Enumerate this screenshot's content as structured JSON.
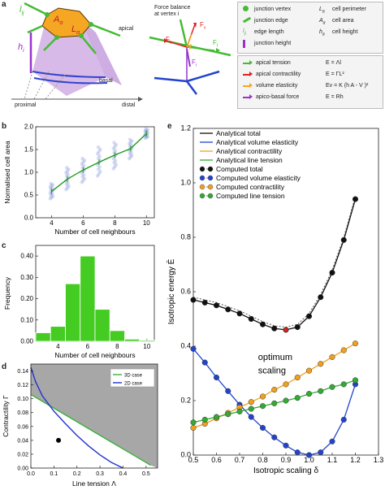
{
  "panel_a": {
    "letter": "a",
    "labels": {
      "l_ij": "l",
      "l_ij_sub": "ij",
      "A_alpha": "A",
      "A_alpha_sub": "α",
      "L_alpha": "L",
      "L_alpha_sub": "α",
      "h_i": "h",
      "h_i_sub": "i",
      "apical": "apical",
      "basal": "basal",
      "proximal": "proximal",
      "distal": "distal"
    },
    "force_title_1": "Force balance",
    "force_title_2": "at vertex i",
    "force_labels": [
      "F",
      "F",
      "F",
      "F"
    ],
    "force_label_subs": [
      "v",
      "c",
      "t",
      "r"
    ],
    "legend_top": [
      {
        "icon": "green-dot",
        "text": "junction vertex",
        "sym": "L",
        "sym_sub": "α",
        "desc": "cell perimeter"
      },
      {
        "icon": "green-line",
        "text": "junction edge",
        "sym": "A",
        "sym_sub": "α",
        "desc": "cell area"
      },
      {
        "icon": "text-lij",
        "text": "edge length",
        "sym": "h",
        "sym_sub": "α",
        "desc": "cell height"
      },
      {
        "icon": "purple-line",
        "text": "junction height",
        "sym": "",
        "sym_sub": "",
        "desc": ""
      }
    ],
    "legend_bottom": [
      {
        "icon": "green-arrow",
        "text": "apical tension",
        "eq": "E = Λl",
        "eq_sub1": "t",
        "eq_sub2": "ij"
      },
      {
        "icon": "red-arrow",
        "text": "apical contractility",
        "eq": "E = ΓL²",
        "eq_sub1": "c",
        "eq_sub2": ""
      },
      {
        "icon": "orange-arrow",
        "text": "volume elasticity",
        "eq": "Ev = K (h A  - V )²",
        "eq_sub1": "",
        "eq_sub2": ""
      },
      {
        "icon": "purple-arrow",
        "text": "apico-basal force",
        "eq": "E = Rh",
        "eq_sub1": "r",
        "eq_sub2": "i"
      }
    ]
  },
  "panel_b": {
    "letter": "b",
    "chart_data": {
      "type": "scatter",
      "xlabel": "Number of cell neighbours",
      "ylabel": "Normalised cell area",
      "xlim": [
        3,
        10.5
      ],
      "ylim": [
        0,
        2.0
      ],
      "xticks": [
        4,
        6,
        8,
        10
      ],
      "yticks": [
        0.0,
        0.5,
        1.0,
        1.5,
        2.0
      ],
      "mean_line": {
        "x": [
          4,
          5,
          6,
          7,
          8,
          9,
          10
        ],
        "y": [
          0.58,
          0.85,
          1.05,
          1.22,
          1.38,
          1.52,
          1.85
        ]
      },
      "scatter_spread": {
        "x": [
          4,
          5,
          6,
          7,
          8,
          9,
          10
        ],
        "low": [
          0.42,
          0.62,
          0.78,
          0.92,
          1.08,
          1.3,
          1.75
        ],
        "high": [
          0.75,
          1.1,
          1.3,
          1.55,
          1.65,
          1.72,
          1.95
        ]
      }
    }
  },
  "panel_c": {
    "letter": "c",
    "chart_data": {
      "type": "bar",
      "xlabel": "Number of cell neighbours",
      "ylabel": "Frequency",
      "categories": [
        3,
        4,
        5,
        6,
        7,
        8,
        9,
        10
      ],
      "values": [
        0.04,
        0.07,
        0.27,
        0.4,
        0.15,
        0.05,
        0.01,
        0.005
      ],
      "ylim": [
        0,
        0.45
      ],
      "xticks": [
        4,
        6,
        8,
        10
      ],
      "yticks": [
        0.0,
        0.1,
        0.2,
        0.3,
        0.4
      ],
      "ytick_labels": [
        "0.00",
        "0.10",
        "0.20",
        "0.30",
        "0.40"
      ],
      "bar_color": "#44cc22"
    }
  },
  "panel_d": {
    "letter": "d",
    "chart_data": {
      "type": "line",
      "xlabel": "Line tension Λ",
      "ylabel": "Contractility Γ",
      "xlim": [
        0,
        0.55
      ],
      "ylim": [
        0,
        0.15
      ],
      "xticks": [
        0.0,
        0.1,
        0.2,
        0.3,
        0.4,
        0.5
      ],
      "yticks": [
        0.0,
        0.02,
        0.04,
        0.06,
        0.08,
        0.1,
        0.12,
        0.14
      ],
      "series": [
        {
          "name": "3D case",
          "color": "#3ab03a",
          "x": [
            0.0,
            0.05,
            0.1,
            0.15,
            0.2,
            0.25,
            0.3,
            0.35,
            0.4,
            0.45,
            0.5,
            0.52
          ],
          "y": [
            0.106,
            0.0962,
            0.0864,
            0.0766,
            0.0668,
            0.057,
            0.0472,
            0.0374,
            0.0276,
            0.0178,
            0.008,
            0.0041
          ]
        },
        {
          "name": "2D case",
          "color": "#2233cc",
          "x": [
            0.0,
            0.02,
            0.05,
            0.1,
            0.15,
            0.2,
            0.25,
            0.3,
            0.35,
            0.4
          ],
          "y": [
            0.145,
            0.125,
            0.104,
            0.082,
            0.064,
            0.047,
            0.032,
            0.019,
            0.008,
            0.0
          ]
        }
      ],
      "point": {
        "x": 0.12,
        "y": 0.04
      },
      "shaded_region_color": "#a7a7a7"
    }
  },
  "panel_e": {
    "letter": "e",
    "annotation_1": "optimum",
    "annotation_2": "scaling",
    "chart_data": {
      "type": "line",
      "xlabel": "Isotropic scaling δ",
      "ylabel": "Isotropic energy Ē",
      "xlim": [
        0.5,
        1.3
      ],
      "ylim": [
        0.0,
        1.2
      ],
      "xticks": [
        0.5,
        0.6,
        0.7,
        0.8,
        0.9,
        1.0,
        1.1,
        1.2,
        1.3
      ],
      "xtick_labels": [
        "0.5",
        "0.6",
        "0.7",
        "0.8",
        "0.9",
        "1.0",
        "1.1",
        "1.2",
        "1.3"
      ],
      "yticks": [
        0.0,
        0.2,
        0.4,
        0.6,
        0.8,
        1.0,
        1.2
      ],
      "ytick_labels": [
        "0.0",
        "0.2",
        "0.4",
        "0.6",
        "0.8",
        "1.0",
        "1.2"
      ],
      "optimum": {
        "x": 0.9,
        "y": 0.46
      },
      "legend": [
        {
          "label": "Analytical total",
          "color": "#111111",
          "kind": "line"
        },
        {
          "label": "Analytical volume elasticity",
          "color": "#2244cc",
          "kind": "line"
        },
        {
          "label": "Analytical contractility",
          "color": "#f0a020",
          "kind": "line"
        },
        {
          "label": "Analytical line tension",
          "color": "#33aa33",
          "kind": "line"
        },
        {
          "label": "Computed total",
          "color": "#111111",
          "kind": "dot"
        },
        {
          "label": "Computed volume elasticity",
          "color": "#2244cc",
          "kind": "dot"
        },
        {
          "label": "Computed contractility",
          "color": "#f0a020",
          "kind": "dot"
        },
        {
          "label": "Computed line tension",
          "color": "#33aa33",
          "kind": "dot"
        }
      ],
      "series": [
        {
          "name": "Analytical total",
          "x": [
            0.5,
            0.55,
            0.6,
            0.65,
            0.7,
            0.75,
            0.8,
            0.85,
            0.9,
            0.95,
            1.0,
            1.05,
            1.1,
            1.15,
            1.2
          ],
          "y": [
            0.57,
            0.56,
            0.55,
            0.535,
            0.52,
            0.5,
            0.48,
            0.465,
            0.46,
            0.47,
            0.51,
            0.58,
            0.67,
            0.79,
            0.94
          ]
        },
        {
          "name": "Analytical volume elasticity",
          "x": [
            0.5,
            0.55,
            0.6,
            0.65,
            0.7,
            0.75,
            0.8,
            0.85,
            0.9,
            0.95,
            1.0,
            1.05,
            1.1,
            1.15,
            1.2
          ],
          "y": [
            0.39,
            0.34,
            0.285,
            0.235,
            0.185,
            0.14,
            0.1,
            0.065,
            0.035,
            0.01,
            0.0,
            0.01,
            0.05,
            0.13,
            0.26
          ]
        },
        {
          "name": "Analytical contractility",
          "x": [
            0.5,
            0.55,
            0.6,
            0.65,
            0.7,
            0.75,
            0.8,
            0.85,
            0.9,
            0.95,
            1.0,
            1.05,
            1.1,
            1.15,
            1.2
          ],
          "y": [
            0.1,
            0.115,
            0.135,
            0.155,
            0.175,
            0.195,
            0.215,
            0.24,
            0.26,
            0.285,
            0.31,
            0.335,
            0.36,
            0.385,
            0.41
          ]
        },
        {
          "name": "Analytical line tension",
          "x": [
            0.5,
            0.55,
            0.6,
            0.65,
            0.7,
            0.75,
            0.8,
            0.85,
            0.9,
            0.95,
            1.0,
            1.05,
            1.1,
            1.15,
            1.2
          ],
          "y": [
            0.12,
            0.13,
            0.14,
            0.15,
            0.16,
            0.17,
            0.18,
            0.19,
            0.2,
            0.21,
            0.225,
            0.235,
            0.25,
            0.26,
            0.275
          ]
        }
      ]
    }
  },
  "colors": {
    "green": "#44bb33",
    "orange": "#f5a623",
    "purple": "#9933cc",
    "red": "#dd2222",
    "blue": "#2244cc",
    "grey": "#a7a7a7"
  }
}
